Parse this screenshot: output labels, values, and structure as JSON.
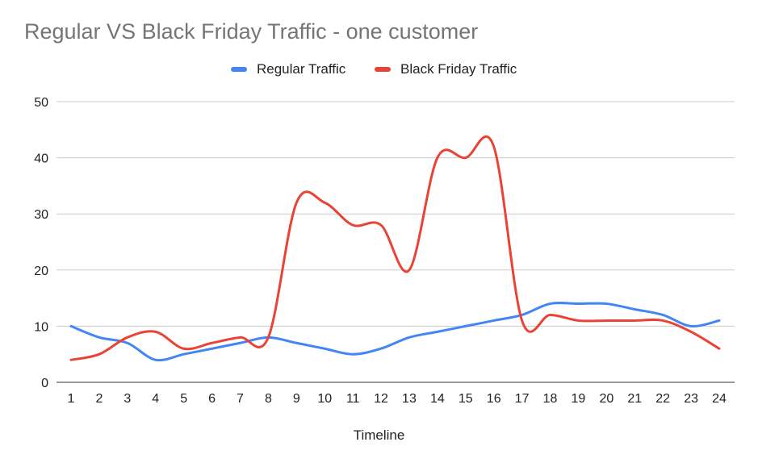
{
  "chart_data": {
    "type": "line",
    "title": "Regular VS Black Friday Traffic - one customer",
    "xlabel": "Timeline",
    "ylabel": "",
    "ylim": [
      0,
      50
    ],
    "yticks": [
      0,
      10,
      20,
      30,
      40,
      50
    ],
    "grid": true,
    "legend_position": "top-center",
    "categories": [
      "1",
      "2",
      "3",
      "4",
      "5",
      "6",
      "7",
      "8",
      "9",
      "10",
      "11",
      "12",
      "13",
      "14",
      "15",
      "16",
      "17",
      "18",
      "19",
      "20",
      "21",
      "22",
      "23",
      "24"
    ],
    "series": [
      {
        "name": "Regular Traffic",
        "color": "#4285f4",
        "values": [
          10,
          8,
          7,
          4,
          5,
          6,
          7,
          8,
          7,
          6,
          5,
          6,
          8,
          9,
          10,
          11,
          12,
          14,
          14,
          14,
          13,
          12,
          10,
          11
        ]
      },
      {
        "name": "Black Friday Traffic",
        "color": "#ea4335",
        "values": [
          4,
          5,
          8,
          9,
          6,
          7,
          8,
          8,
          32,
          32,
          28,
          28,
          20,
          40,
          40,
          42,
          11,
          12,
          11,
          11,
          11,
          11,
          9,
          6
        ]
      }
    ]
  }
}
